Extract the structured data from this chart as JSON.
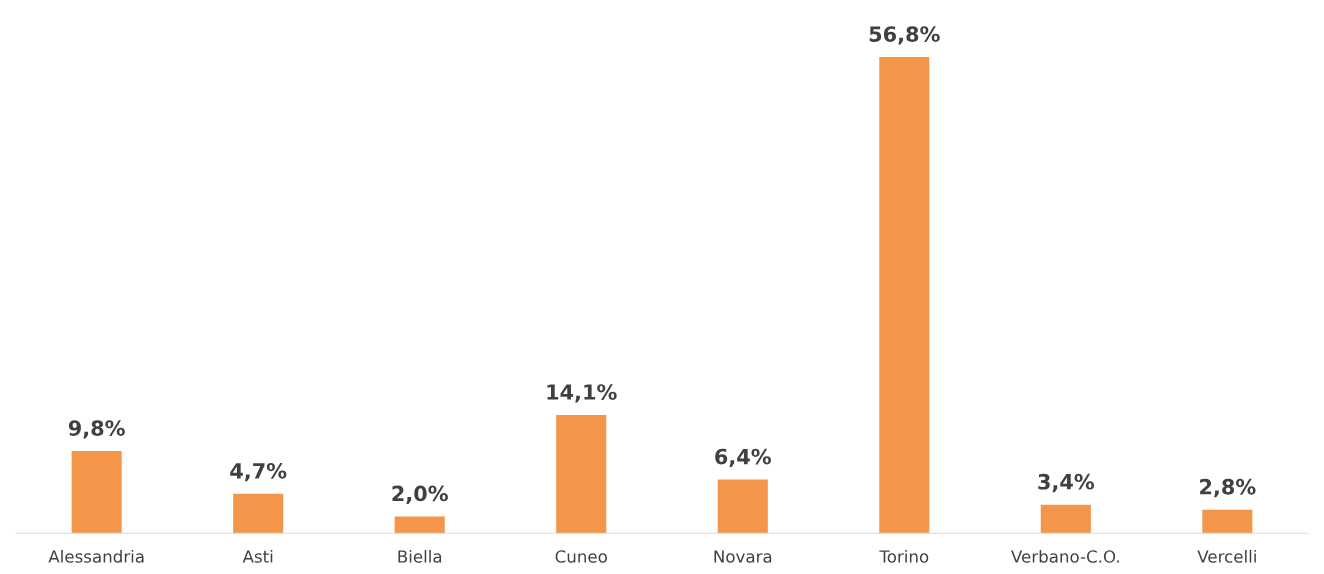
{
  "chart_data": {
    "type": "bar",
    "categories": [
      "Alessandria",
      "Asti",
      "Biella",
      "Cuneo",
      "Novara",
      "Torino",
      "Verbano-C.O.",
      "Vercelli"
    ],
    "values": [
      9.8,
      4.7,
      2.0,
      14.1,
      6.4,
      56.8,
      3.4,
      2.8
    ],
    "value_labels": [
      "9,8%",
      "4,7%",
      "2,0%",
      "14,1%",
      "6,4%",
      "56,8%",
      "3,4%",
      "2,8%"
    ],
    "color": "#f4964a",
    "legend": false
  }
}
